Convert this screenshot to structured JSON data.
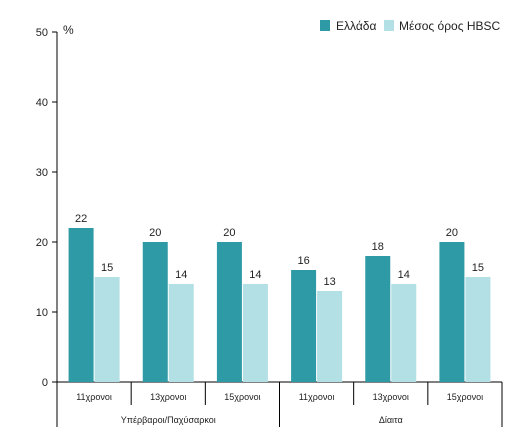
{
  "chart_data": {
    "type": "bar",
    "unit_label": "%",
    "ylim": [
      0,
      50
    ],
    "yticks": [
      0,
      10,
      20,
      30,
      40,
      50
    ],
    "grid": false,
    "legend_position": "top-right",
    "categories": [
      "11χρονοι",
      "13χρονοι",
      "15χρονοι",
      "11χρονοι",
      "13χρονοι",
      "15χρονοι"
    ],
    "groups": [
      {
        "label": "Υπέρβαροι/Παχύσαρκοι",
        "span": 3
      },
      {
        "label": "Δίαιτα",
        "span": 3
      }
    ],
    "series": [
      {
        "name": "Ελλάδα",
        "color": "#2e9aa6",
        "values": [
          22,
          20,
          20,
          16,
          18,
          20
        ]
      },
      {
        "name": "Μέσος όρος HBSC",
        "color": "#b2e0e4",
        "values": [
          15,
          14,
          14,
          13,
          14,
          15
        ]
      }
    ]
  }
}
